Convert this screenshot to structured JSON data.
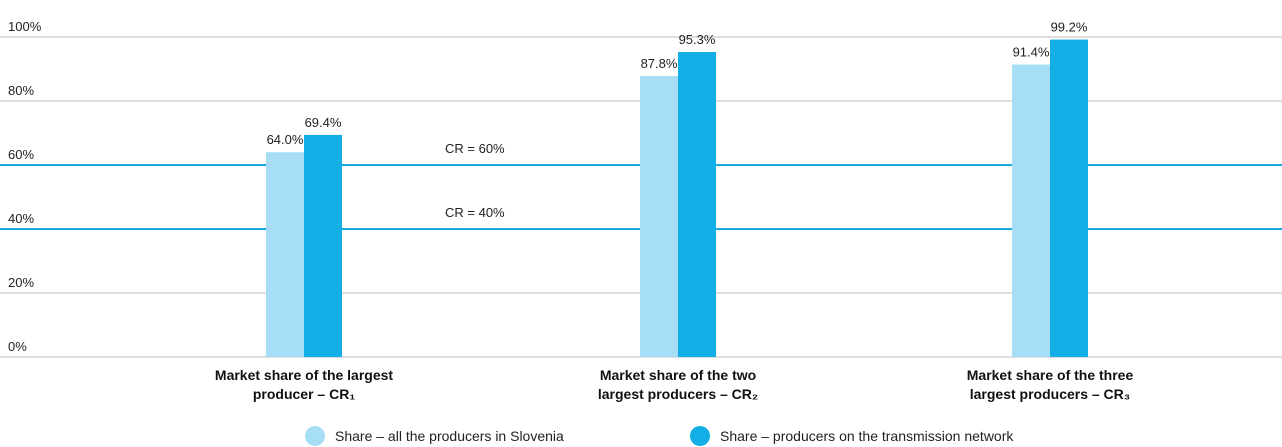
{
  "chart_data": {
    "type": "bar",
    "categories": [
      "Market share of the largest producer – CR₁",
      "Market share of the two largest producers – CR₂",
      "Market share of the three largest producers – CR₃"
    ],
    "series": [
      {
        "name": "Share – all the producers in Slovenia",
        "color": "#a6dff5",
        "values": [
          64.0,
          87.8,
          91.4
        ],
        "value_labels": [
          "64.0%",
          "87.8%",
          "91.4%"
        ]
      },
      {
        "name": "Share – producers on the transmission network",
        "color": "#14aee6",
        "values": [
          69.4,
          95.3,
          99.2
        ],
        "value_labels": [
          "69.4%",
          "95.3%",
          "99.2%"
        ]
      }
    ],
    "ylim": [
      0,
      100
    ],
    "yticks": [
      {
        "value": 0,
        "label": "0%"
      },
      {
        "value": 20,
        "label": "20%"
      },
      {
        "value": 40,
        "label": "40%"
      },
      {
        "value": 60,
        "label": "60%"
      },
      {
        "value": 80,
        "label": "80%"
      },
      {
        "value": 100,
        "label": "100%"
      }
    ],
    "grid": true,
    "reference_lines": [
      {
        "value": 60,
        "label": "CR = 60%",
        "color": "#1ba6d9"
      },
      {
        "value": 40,
        "label": "CR = 40%",
        "color": "#1ba6d9"
      }
    ],
    "legend": "bottom"
  }
}
